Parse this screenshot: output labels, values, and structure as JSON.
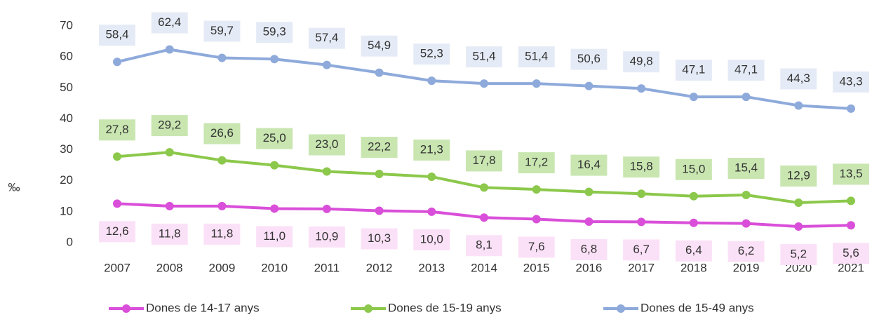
{
  "chart_data": {
    "type": "line",
    "y_axis_label": "‰",
    "categories": [
      "2007",
      "2008",
      "2009",
      "2010",
      "2011",
      "2012",
      "2013",
      "2014",
      "2015",
      "2016",
      "2017",
      "2018",
      "2019",
      "2020",
      "2021"
    ],
    "series": [
      {
        "name": "Dones de 14-17 anys",
        "color": "#d94fd9",
        "label_bg": "#fbe1f7",
        "label_side": "below",
        "values": [
          12.6,
          11.8,
          11.8,
          11.0,
          10.9,
          10.3,
          10.0,
          8.1,
          7.6,
          6.8,
          6.7,
          6.4,
          6.2,
          5.2,
          5.6
        ],
        "value_labels": [
          "12,6",
          "11,8",
          "11,8",
          "11,0",
          "10,9",
          "10,3",
          "10,0",
          "8,1",
          "7,6",
          "6,8",
          "6,7",
          "6,4",
          "6,2",
          "5,2",
          "5,6"
        ]
      },
      {
        "name": "Dones de 15-19 anys",
        "color": "#8cc84b",
        "label_bg": "#c9e6b1",
        "label_side": "above",
        "values": [
          27.8,
          29.2,
          26.6,
          25.0,
          23.0,
          22.2,
          21.3,
          17.8,
          17.2,
          16.4,
          15.8,
          15.0,
          15.4,
          12.9,
          13.5
        ],
        "value_labels": [
          "27,8",
          "29,2",
          "26,6",
          "25,0",
          "23,0",
          "22,2",
          "21,3",
          "17,8",
          "17,2",
          "16,4",
          "15,8",
          "15,0",
          "15,4",
          "12,9",
          "13,5"
        ]
      },
      {
        "name": "Dones de 15-49 anys",
        "color": "#8eaadb",
        "label_bg": "#e5ebf6",
        "label_side": "above",
        "values": [
          58.4,
          62.4,
          59.7,
          59.3,
          57.4,
          54.9,
          52.3,
          51.4,
          51.4,
          50.6,
          49.8,
          47.1,
          47.1,
          44.3,
          43.3
        ],
        "value_labels": [
          "58,4",
          "62,4",
          "59,7",
          "59,3",
          "57,4",
          "54,9",
          "52,3",
          "51,4",
          "51,4",
          "50,6",
          "49,8",
          "47,1",
          "47,1",
          "44,3",
          "43,3"
        ]
      }
    ],
    "ylim": [
      0,
      70
    ],
    "yticks": [
      0,
      10,
      20,
      30,
      40,
      50,
      60,
      70
    ],
    "grid": false,
    "legend": "bottom"
  }
}
